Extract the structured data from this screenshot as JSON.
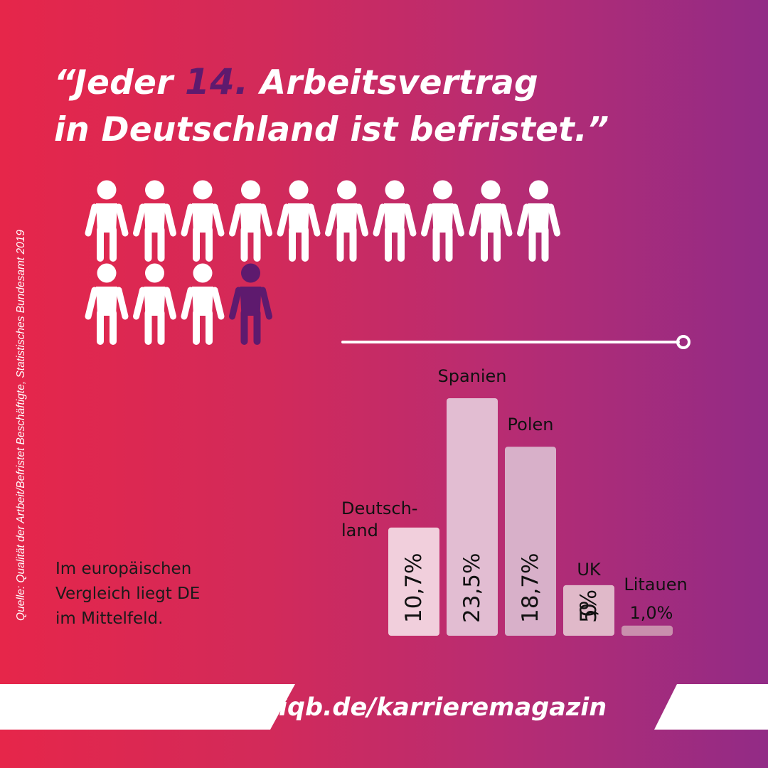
{
  "headline": {
    "prefix": "“Jeder ",
    "highlight": "14.",
    "suffix": " Arbeitsvertrag",
    "line2": "in Deutschland ist befristet.”"
  },
  "source": "Quelle: Qualität der Artbeit/Befristet Beschäftigte, Statistisches Bundesamt 2019",
  "pictogram": {
    "total": 14,
    "highlighted_index": 13,
    "color_default": "#ffffff",
    "color_highlight": "#5e1a6e"
  },
  "caption": {
    "line1": "Im europäischen",
    "line2": "Vergleich liegt DE",
    "line3": "im Mittelfeld."
  },
  "chart_data": {
    "type": "bar",
    "categories": [
      "Deutschland",
      "Spanien",
      "Polen",
      "UK",
      "Litauen"
    ],
    "category_labels": [
      [
        "Deutsch-",
        "land"
      ],
      [
        "Spanien"
      ],
      [
        "Polen"
      ],
      [
        "UK"
      ],
      [
        "Litauen"
      ]
    ],
    "values": [
      10.7,
      23.5,
      18.7,
      5.0,
      1.0
    ],
    "value_labels": [
      "10,7%",
      "23,5%",
      "18,7%",
      "5,0%",
      "1,0%"
    ],
    "unit": "%",
    "ylim": [
      0,
      23.5
    ],
    "bar_colors": [
      "#f1cfdc",
      "#e2bdd2",
      "#d8b0c9",
      "#e0b9c9",
      "#c98fad"
    ],
    "grid": false,
    "legend": "none"
  },
  "cta": {
    "link": "iqb.de/karrieremagazin",
    "band_color": "#ffffff"
  }
}
